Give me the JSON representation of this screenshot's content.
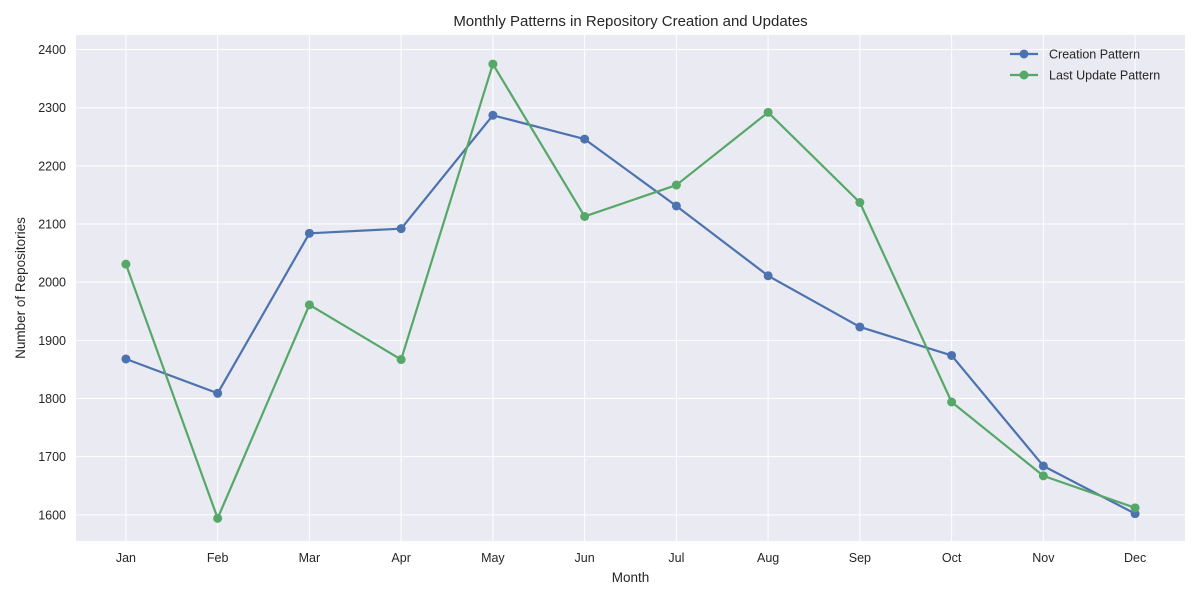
{
  "chart_data": {
    "type": "line",
    "title": "Monthly Patterns in Repository Creation and Updates",
    "xlabel": "Month",
    "ylabel": "Number of Repositories",
    "categories": [
      "Jan",
      "Feb",
      "Mar",
      "Apr",
      "May",
      "Jun",
      "Jul",
      "Aug",
      "Sep",
      "Oct",
      "Nov",
      "Dec"
    ],
    "ylim": [
      1555,
      2425
    ],
    "yticks": [
      1600,
      1700,
      1800,
      1900,
      2000,
      2100,
      2200,
      2300,
      2400
    ],
    "grid": true,
    "legend_position": "top-right",
    "series": [
      {
        "name": "Creation Pattern",
        "color": "#4c72b0",
        "values": [
          1868,
          1809,
          2084,
          2092,
          2287,
          2246,
          2131,
          2011,
          1923,
          1874,
          1684,
          1602
        ]
      },
      {
        "name": "Last Update Pattern",
        "color": "#55a868",
        "values": [
          2031,
          1594,
          1961,
          1867,
          2375,
          2113,
          2167,
          2292,
          2137,
          1794,
          1667,
          1612
        ]
      }
    ]
  }
}
